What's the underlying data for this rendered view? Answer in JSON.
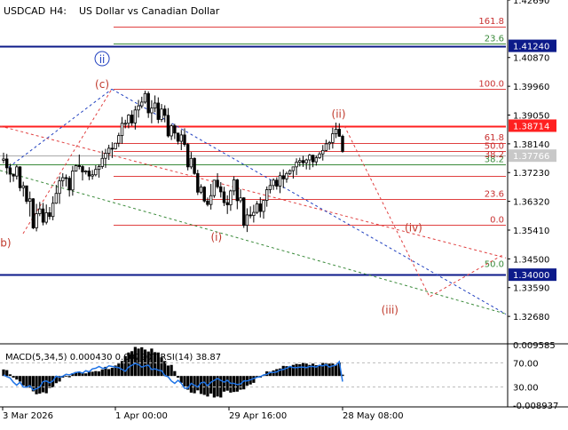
{
  "header": {
    "symbol": "USDCAD",
    "timeframe": "H4:",
    "description": "US Dollar vs Canadian Dollar"
  },
  "chart_data": {
    "type": "candlestick",
    "price_range": [
      1.3184,
      1.4269
    ],
    "price_axis_ticks": [
      "1.42690",
      "1.40870",
      "1.39960",
      "1.39050",
      "1.38140",
      "1.37230",
      "1.36320",
      "1.35410",
      "1.34500",
      "1.33590",
      "1.32680"
    ],
    "highlight_labels": [
      {
        "text": "1.41240",
        "bg": "#0c1a8a"
      },
      {
        "text": "1.38714",
        "bg": "#ff2020"
      },
      {
        "text": "1.37766",
        "bg": "#c8c8c8"
      },
      {
        "text": "1.34000",
        "bg": "#0c1a8a"
      }
    ],
    "time_axis_labels": [
      "3 Mar 2026",
      "1 Apr 00:00",
      "29 Apr 16:00",
      "28 May 08:00"
    ],
    "horizontal_levels": [
      {
        "price": 1.4184,
        "color": "#e04040"
      },
      {
        "price": 1.413,
        "color": "#3a8a3a"
      },
      {
        "price": 1.4124,
        "color": "#0c1a8a"
      },
      {
        "price": 1.3987,
        "color": "#e04040"
      },
      {
        "price": 1.3871,
        "color": "#ff2020"
      },
      {
        "price": 1.3817,
        "color": "#e04040"
      },
      {
        "price": 1.379,
        "color": "#e04040"
      },
      {
        "price": 1.3776,
        "color": "#aaaaaa"
      },
      {
        "price": 1.3748,
        "color": "#3a8a3a"
      },
      {
        "price": 1.3712,
        "color": "#e04040"
      },
      {
        "price": 1.3638,
        "color": "#e04040"
      },
      {
        "price": 1.3557,
        "color": "#e04040"
      },
      {
        "price": 1.34,
        "color": "#0c1a8a"
      }
    ],
    "fibonacci_labels": [
      {
        "text": "161.8",
        "price": 1.4184,
        "color": "#c83030"
      },
      {
        "text": "23.6",
        "price": 1.413,
        "color": "#3a8a3a"
      },
      {
        "text": "100.0",
        "price": 1.3987,
        "color": "#c83030"
      },
      {
        "text": "61.8",
        "price": 1.3817,
        "color": "#c83030"
      },
      {
        "text": "50.0",
        "price": 1.379,
        "color": "#c83030"
      },
      {
        "text": "38.2",
        "price": 1.3748,
        "color": "#3a8a3a"
      },
      {
        "text": "38.2",
        "price": 1.3763,
        "color": "#c83030"
      },
      {
        "text": "23.6",
        "price": 1.3638,
        "color": "#c83030"
      },
      {
        "text": "0.0",
        "price": 1.3557,
        "color": "#c83030"
      },
      {
        "text": "50.0",
        "price": 1.3416,
        "color": "#3a8a3a"
      }
    ],
    "wave_labels": [
      {
        "text": "(b)",
        "x": "3 Mar 2026",
        "price": 1.3495,
        "color": "#c0392b"
      },
      {
        "text": "(c)",
        "x": "28 Mar 2026",
        "price": 1.3997,
        "color": "#c0392b"
      },
      {
        "text": "ii",
        "x": "28 Mar 2026",
        "price": 1.4075,
        "color": "#1f3fbf",
        "circled": true
      },
      {
        "text": "(i)",
        "x": "26 Apr 2026",
        "price": 1.3513,
        "color": "#c0392b"
      },
      {
        "text": "(ii)",
        "x": "27 May 2026",
        "price": 1.3902,
        "color": "#c0392b"
      },
      {
        "text": "(iii)",
        "x": "9 Jun 2026",
        "price": 1.3283,
        "color": "#c0392b"
      },
      {
        "text": "(iv)",
        "x": "15 Jun 2026",
        "price": 1.3542,
        "color": "#c0392b"
      }
    ],
    "candles_ohlc": [
      [
        1.3762,
        1.3786,
        1.3752,
        1.3766
      ],
      [
        1.3766,
        1.3782,
        1.3717,
        1.3738
      ],
      [
        1.3738,
        1.3751,
        1.3692,
        1.3718
      ],
      [
        1.3718,
        1.3719,
        1.3694,
        1.3712
      ],
      [
        1.3712,
        1.3748,
        1.3701,
        1.3741
      ],
      [
        1.3741,
        1.3743,
        1.3664,
        1.3675
      ],
      [
        1.3675,
        1.3694,
        1.3647,
        1.3681
      ],
      [
        1.3681,
        1.3681,
        1.3624,
        1.3632
      ],
      [
        1.3632,
        1.3663,
        1.3584,
        1.364
      ],
      [
        1.364,
        1.3642,
        1.3544,
        1.3548
      ],
      [
        1.3548,
        1.3624,
        1.3537,
        1.3593
      ],
      [
        1.3593,
        1.363,
        1.3585,
        1.3608
      ],
      [
        1.3608,
        1.3627,
        1.3556,
        1.3566
      ],
      [
        1.3566,
        1.3622,
        1.3559,
        1.3596
      ],
      [
        1.3596,
        1.3614,
        1.3574,
        1.3584
      ],
      [
        1.3584,
        1.3648,
        1.3572,
        1.3626
      ],
      [
        1.3626,
        1.3684,
        1.3624,
        1.3657
      ],
      [
        1.3657,
        1.3711,
        1.3624,
        1.3697
      ],
      [
        1.3697,
        1.3721,
        1.3678,
        1.3707
      ],
      [
        1.3707,
        1.3717,
        1.3679,
        1.3705
      ],
      [
        1.3705,
        1.3712,
        1.3647,
        1.3668
      ],
      [
        1.3668,
        1.3744,
        1.365,
        1.3728
      ],
      [
        1.3728,
        1.3749,
        1.3726,
        1.3745
      ],
      [
        1.3745,
        1.378,
        1.3733,
        1.3742
      ],
      [
        1.3742,
        1.3746,
        1.3698,
        1.3725
      ],
      [
        1.3725,
        1.3731,
        1.3717,
        1.3728
      ],
      [
        1.3728,
        1.374,
        1.3699,
        1.3712
      ],
      [
        1.3712,
        1.3731,
        1.3701,
        1.3716
      ],
      [
        1.3716,
        1.3746,
        1.3711,
        1.3733
      ],
      [
        1.3733,
        1.3749,
        1.3707,
        1.3742
      ],
      [
        1.3742,
        1.3792,
        1.3735,
        1.3768
      ],
      [
        1.3768,
        1.3798,
        1.3738,
        1.3784
      ],
      [
        1.3784,
        1.3811,
        1.3763,
        1.38
      ],
      [
        1.38,
        1.3819,
        1.3769,
        1.3798
      ],
      [
        1.3798,
        1.3816,
        1.3796,
        1.3816
      ],
      [
        1.3816,
        1.3849,
        1.3804,
        1.384
      ],
      [
        1.384,
        1.3899,
        1.3814,
        1.3879
      ],
      [
        1.3879,
        1.389,
        1.3863,
        1.3879
      ],
      [
        1.3879,
        1.3908,
        1.3863,
        1.3905
      ],
      [
        1.3905,
        1.392,
        1.3871,
        1.388
      ],
      [
        1.388,
        1.3934,
        1.3859,
        1.3921
      ],
      [
        1.3921,
        1.3953,
        1.3897,
        1.3934
      ],
      [
        1.3934,
        1.3963,
        1.3926,
        1.3946
      ],
      [
        1.3946,
        1.3982,
        1.3941,
        1.3973
      ],
      [
        1.3973,
        1.398,
        1.3896,
        1.3912
      ],
      [
        1.3912,
        1.3952,
        1.3879,
        1.3927
      ],
      [
        1.3927,
        1.3967,
        1.3914,
        1.3943
      ],
      [
        1.3943,
        1.3961,
        1.3879,
        1.3891
      ],
      [
        1.3891,
        1.394,
        1.3883,
        1.3924
      ],
      [
        1.3924,
        1.3936,
        1.3882,
        1.3904
      ],
      [
        1.3904,
        1.3927,
        1.3834,
        1.3839
      ],
      [
        1.3839,
        1.3877,
        1.3826,
        1.3871
      ],
      [
        1.3871,
        1.3877,
        1.3829,
        1.3848
      ],
      [
        1.3848,
        1.3848,
        1.3812,
        1.3822
      ],
      [
        1.3822,
        1.3858,
        1.3794,
        1.3842
      ],
      [
        1.3842,
        1.3863,
        1.3805,
        1.3812
      ],
      [
        1.3812,
        1.3817,
        1.373,
        1.3741
      ],
      [
        1.3741,
        1.3788,
        1.3734,
        1.3768
      ],
      [
        1.3768,
        1.3771,
        1.3716,
        1.372
      ],
      [
        1.372,
        1.3732,
        1.3652,
        1.3661
      ],
      [
        1.3661,
        1.3686,
        1.3655,
        1.3677
      ],
      [
        1.3677,
        1.368,
        1.3628,
        1.3633
      ],
      [
        1.3633,
        1.3644,
        1.3616,
        1.3622
      ],
      [
        1.3622,
        1.3687,
        1.3606,
        1.365
      ],
      [
        1.365,
        1.37,
        1.3643,
        1.3699
      ],
      [
        1.3699,
        1.3721,
        1.3672,
        1.3678
      ],
      [
        1.3678,
        1.3693,
        1.3644,
        1.3662
      ],
      [
        1.3662,
        1.3678,
        1.3617,
        1.3628
      ],
      [
        1.3628,
        1.3651,
        1.3592,
        1.3621
      ],
      [
        1.3621,
        1.3669,
        1.3602,
        1.3665
      ],
      [
        1.3665,
        1.3711,
        1.3651,
        1.37
      ],
      [
        1.37,
        1.3703,
        1.3607,
        1.3634
      ],
      [
        1.3634,
        1.367,
        1.3627,
        1.3643
      ],
      [
        1.3643,
        1.3645,
        1.3548,
        1.3556
      ],
      [
        1.3556,
        1.361,
        1.3535,
        1.3589
      ],
      [
        1.3589,
        1.3616,
        1.3578,
        1.3587
      ],
      [
        1.3587,
        1.3621,
        1.3565,
        1.3597
      ],
      [
        1.3597,
        1.3633,
        1.3592,
        1.3624
      ],
      [
        1.3624,
        1.3645,
        1.3581,
        1.36
      ],
      [
        1.36,
        1.3636,
        1.3577,
        1.3635
      ],
      [
        1.3635,
        1.3679,
        1.3615,
        1.3669
      ],
      [
        1.3669,
        1.37,
        1.3657,
        1.3682
      ],
      [
        1.3682,
        1.3705,
        1.3668,
        1.3699
      ],
      [
        1.3699,
        1.3708,
        1.3669,
        1.368
      ],
      [
        1.368,
        1.3725,
        1.3658,
        1.3713
      ],
      [
        1.3713,
        1.3733,
        1.3674,
        1.3703
      ],
      [
        1.3703,
        1.3726,
        1.3691,
        1.372
      ],
      [
        1.372,
        1.3733,
        1.3715,
        1.3729
      ],
      [
        1.3729,
        1.3742,
        1.3704,
        1.3741
      ],
      [
        1.3741,
        1.3768,
        1.3715,
        1.3756
      ],
      [
        1.3756,
        1.377,
        1.3742,
        1.3761
      ],
      [
        1.3761,
        1.3776,
        1.3741,
        1.3754
      ],
      [
        1.3754,
        1.3767,
        1.3733,
        1.3763
      ],
      [
        1.3763,
        1.3782,
        1.3732,
        1.3778
      ],
      [
        1.3778,
        1.3779,
        1.374,
        1.3757
      ],
      [
        1.3757,
        1.3777,
        1.3745,
        1.377
      ],
      [
        1.377,
        1.3788,
        1.3766,
        1.3782
      ],
      [
        1.3782,
        1.381,
        1.3761,
        1.3793
      ],
      [
        1.3793,
        1.3827,
        1.379,
        1.3814
      ],
      [
        1.3814,
        1.3823,
        1.3795,
        1.3818
      ],
      [
        1.3818,
        1.3865,
        1.3799,
        1.3846
      ],
      [
        1.3846,
        1.3881,
        1.3832,
        1.386
      ],
      [
        1.386,
        1.3879,
        1.3836,
        1.3838
      ],
      [
        1.3838,
        1.3843,
        1.3786,
        1.379
      ]
    ],
    "indicator": {
      "label": "MACD(5,34,5) 0.000430 0.002907 RSI(14) 38.87",
      "axis_ticks": [
        "0.009585",
        "70.00",
        "30.00",
        "-0.008937"
      ],
      "macd_range": [
        -0.008937,
        0.009585
      ],
      "rsi_levels": [
        70,
        30
      ],
      "histogram": [
        0.002,
        0.0018,
        0.0005,
        -0.0005,
        -0.0011,
        -0.0017,
        -0.0029,
        -0.0036,
        -0.0036,
        -0.0047,
        -0.0056,
        -0.0054,
        -0.005,
        -0.0053,
        -0.0037,
        -0.0035,
        -0.0022,
        -0.0017,
        -0.0005,
        -0.0001,
        -0.0004,
        0.0008,
        0.0012,
        0.0013,
        0.0011,
        0.0008,
        0.0015,
        0.0013,
        0.0015,
        0.0014,
        0.002,
        0.0028,
        0.0021,
        0.0025,
        0.0032,
        0.0038,
        0.0046,
        0.0061,
        0.0072,
        0.0076,
        0.0089,
        0.0084,
        0.0088,
        0.0081,
        0.0075,
        0.0084,
        0.0073,
        0.0072,
        0.0057,
        0.0046,
        0.0032,
        0.0034,
        0.0015,
        -0.0005,
        -0.0021,
        -0.0032,
        -0.0042,
        -0.0051,
        -0.0053,
        -0.0044,
        -0.0055,
        -0.0058,
        -0.0063,
        -0.0054,
        -0.0066,
        -0.0063,
        -0.0066,
        -0.0048,
        -0.0045,
        -0.0051,
        -0.0049,
        -0.0048,
        -0.0042,
        -0.0041,
        -0.003,
        -0.0026,
        -0.0021,
        -0.0004,
        -0.0005,
        0.0003,
        0.0014,
        0.0013,
        0.0017,
        0.0021,
        0.0023,
        0.0031,
        0.003,
        0.0029,
        0.0034,
        0.0037,
        0.0036,
        0.004,
        0.0038,
        0.0034,
        0.0038,
        0.0033,
        0.0031,
        0.004,
        0.0038,
        0.0038,
        0.0038,
        0.0033,
        0.0041,
        0.0004
      ],
      "rsi": [
        50,
        47,
        45,
        38,
        33,
        38,
        30,
        30,
        32,
        25,
        27,
        30,
        39,
        40,
        37,
        40,
        48,
        46,
        48,
        51,
        50,
        52,
        54,
        55,
        53,
        57,
        55,
        60,
        61,
        64,
        61,
        61,
        65,
        64,
        63,
        62,
        59,
        56,
        63,
        66,
        69,
        67,
        63,
        65,
        66,
        59,
        60,
        58,
        57,
        49,
        47,
        40,
        36,
        41,
        36,
        28,
        28,
        36,
        33,
        30,
        37,
        38,
        32,
        38,
        41,
        44,
        41,
        38,
        41,
        36,
        36,
        34,
        35,
        40,
        40,
        42,
        44,
        46,
        47,
        50,
        51,
        54,
        54,
        55,
        58,
        59,
        61,
        64,
        62,
        62,
        63,
        63,
        62,
        64,
        64,
        63,
        66,
        65,
        67,
        63,
        65,
        66,
        72,
        39
      ]
    }
  }
}
